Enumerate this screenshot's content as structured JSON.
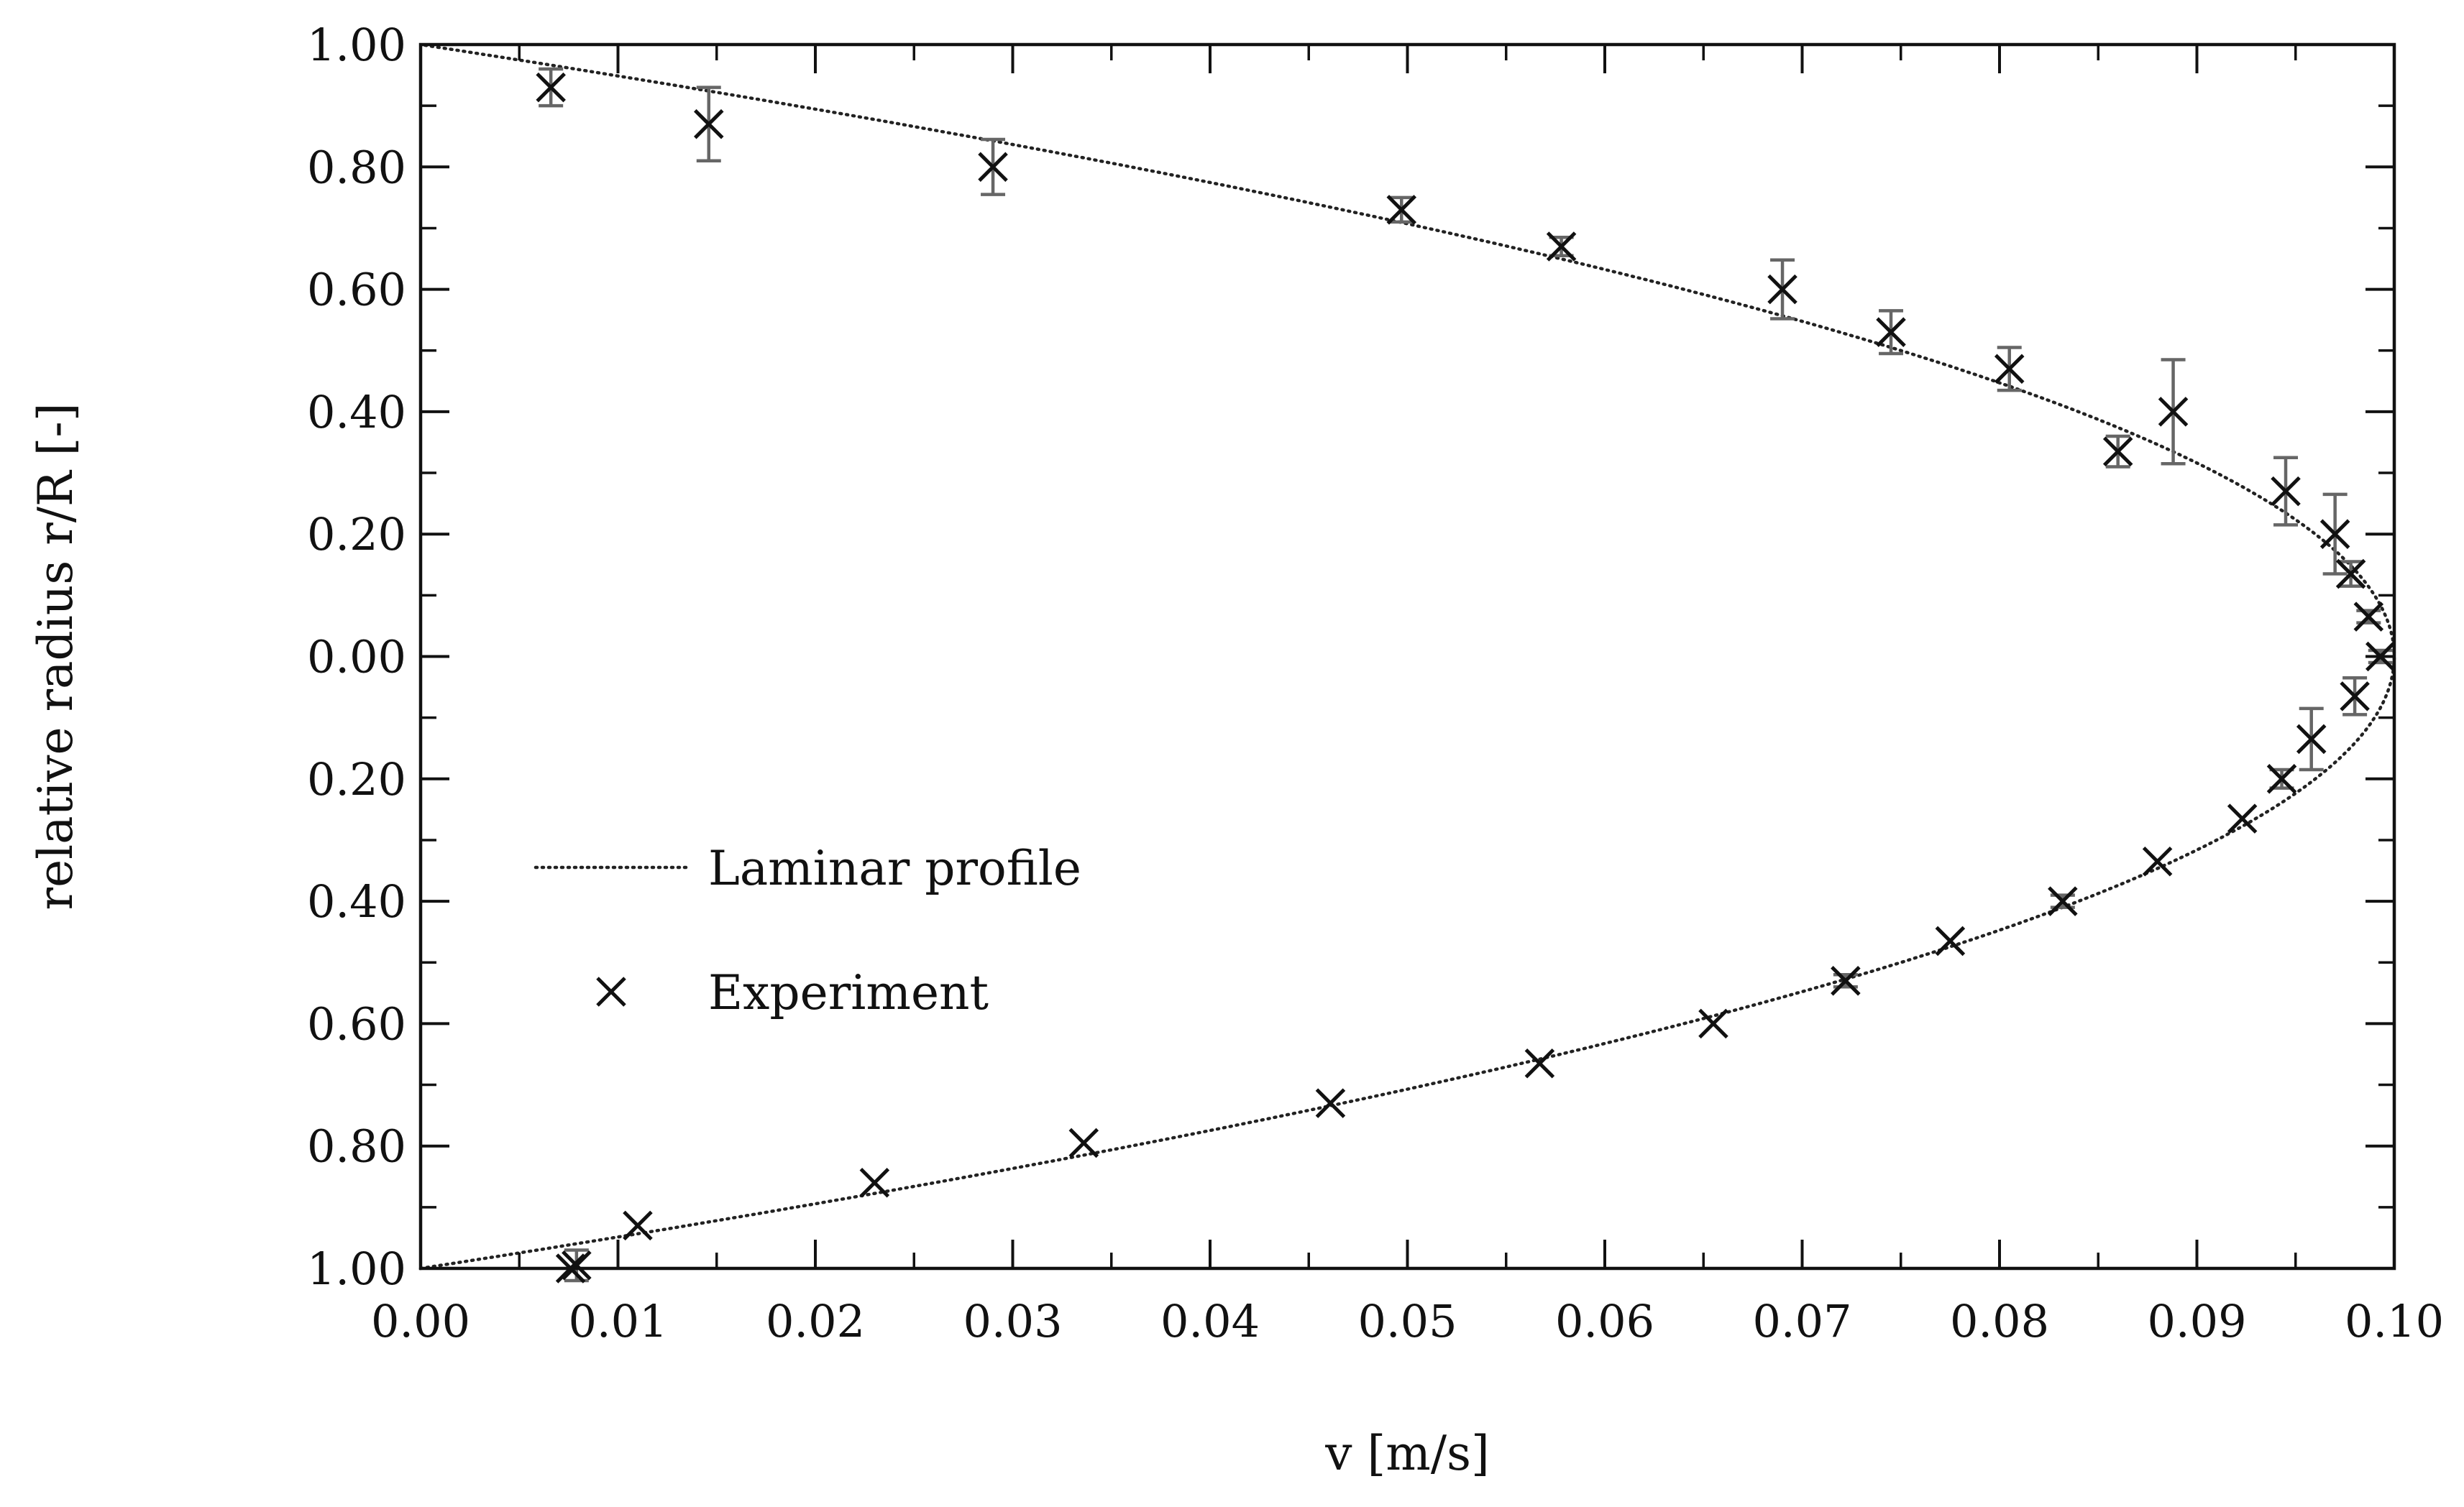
{
  "chart_data": {
    "type": "scatter",
    "title": "",
    "xlabel": "v [m/s]",
    "ylabel": "relative radius r/R [-]",
    "xlim": [
      0.0,
      0.1
    ],
    "ylim": [
      -1.0,
      1.0
    ],
    "x_ticks": [
      0.0,
      0.01,
      0.02,
      0.03,
      0.04,
      0.05,
      0.06,
      0.07,
      0.08,
      0.09,
      0.1
    ],
    "x_tick_labels": [
      "0.00",
      "0.01",
      "0.02",
      "0.03",
      "0.04",
      "0.05",
      "0.06",
      "0.07",
      "0.08",
      "0.09",
      "0.10"
    ],
    "y_ticks": [
      1.0,
      0.8,
      0.6,
      0.4,
      0.2,
      0.0,
      -0.2,
      -0.4,
      -0.6,
      -0.8,
      -1.0
    ],
    "y_tick_labels": [
      "1.00",
      "0.80",
      "0.60",
      "0.40",
      "0.20",
      "0.00",
      "0.20",
      "0.40",
      "0.60",
      "0.80",
      "1.00"
    ],
    "grid": false,
    "legend": {
      "position": "left-center",
      "entries": [
        {
          "label": "Laminar profile",
          "marker": "dotted-line"
        },
        {
          "label": "Experiment",
          "marker": "x"
        }
      ]
    },
    "series": [
      {
        "name": "Laminar profile",
        "kind": "line",
        "style": "dotted",
        "v_max": 0.1,
        "equation": "v = v_max * (1 - (r/R)^2)"
      },
      {
        "name": "Experiment",
        "kind": "scatter",
        "marker": "x",
        "points": [
          {
            "x": 0.0066,
            "y": 0.93,
            "err": 0.03
          },
          {
            "x": 0.0146,
            "y": 0.87,
            "err": 0.06
          },
          {
            "x": 0.029,
            "y": 0.8,
            "err": 0.045
          },
          {
            "x": 0.0497,
            "y": 0.73,
            "err": 0.02
          },
          {
            "x": 0.0578,
            "y": 0.67,
            "err": 0.015
          },
          {
            "x": 0.069,
            "y": 0.6,
            "err": 0.048
          },
          {
            "x": 0.0745,
            "y": 0.53,
            "err": 0.035
          },
          {
            "x": 0.0805,
            "y": 0.47,
            "err": 0.035
          },
          {
            "x": 0.086,
            "y": 0.335,
            "err": 0.025
          },
          {
            "x": 0.0888,
            "y": 0.4,
            "err": 0.085
          },
          {
            "x": 0.0945,
            "y": 0.27,
            "err": 0.055
          },
          {
            "x": 0.097,
            "y": 0.2,
            "err": 0.065
          },
          {
            "x": 0.0978,
            "y": 0.135,
            "err": 0.02
          },
          {
            "x": 0.0987,
            "y": 0.065,
            "err": 0.01
          },
          {
            "x": 0.0993,
            "y": 0.0,
            "err": 0.01
          },
          {
            "x": 0.098,
            "y": -0.065,
            "err": 0.03
          },
          {
            "x": 0.0958,
            "y": -0.135,
            "err": 0.05
          },
          {
            "x": 0.0943,
            "y": -0.2,
            "err": 0.015
          },
          {
            "x": 0.0923,
            "y": -0.265,
            "err": 0.0
          },
          {
            "x": 0.088,
            "y": -0.335,
            "err": 0.0
          },
          {
            "x": 0.0832,
            "y": -0.4,
            "err": 0.01
          },
          {
            "x": 0.0775,
            "y": -0.465,
            "err": 0.0
          },
          {
            "x": 0.0722,
            "y": -0.53,
            "err": 0.01
          },
          {
            "x": 0.0655,
            "y": -0.6,
            "err": 0.0
          },
          {
            "x": 0.0567,
            "y": -0.665,
            "err": 0.0
          },
          {
            "x": 0.0461,
            "y": -0.73,
            "err": 0.0
          },
          {
            "x": 0.0336,
            "y": -0.795,
            "err": 0.0
          },
          {
            "x": 0.023,
            "y": -0.86,
            "err": 0.0
          },
          {
            "x": 0.011,
            "y": -0.93,
            "err": 0.0
          },
          {
            "x": 0.0079,
            "y": -0.995,
            "err": 0.025
          },
          {
            "x": 0.0076,
            "y": -1.0,
            "err": 0.0
          }
        ]
      }
    ]
  }
}
